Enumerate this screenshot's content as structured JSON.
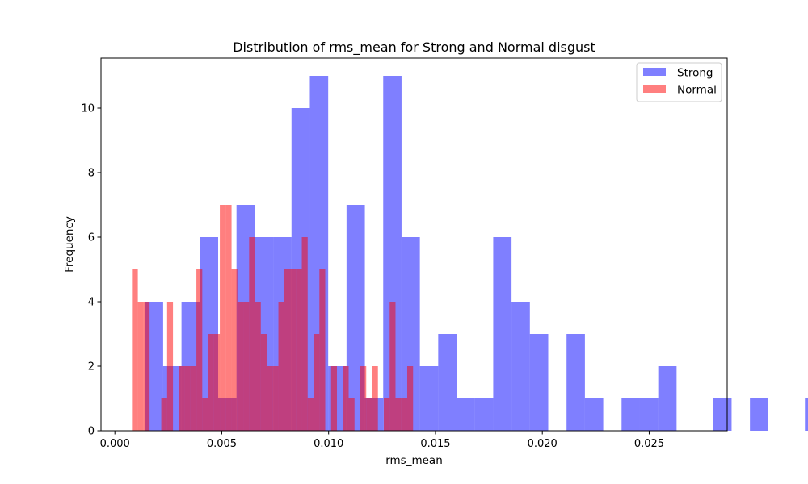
{
  "chart_data": {
    "type": "histogram",
    "title": "Distribution of rms_mean for Strong and Normal disgust",
    "xlabel": "rms_mean",
    "ylabel": "Frequency",
    "xlim": [
      -0.00065,
      0.02865
    ],
    "ylim": [
      0,
      11.55
    ],
    "xticks": [
      0.0,
      0.005,
      0.01,
      0.015,
      0.02,
      0.025
    ],
    "xtick_labels": [
      "0.000",
      "0.005",
      "0.010",
      "0.015",
      "0.020",
      "0.025"
    ],
    "yticks": [
      0,
      2,
      4,
      6,
      8,
      10
    ],
    "ytick_labels": [
      "0",
      "2",
      "4",
      "6",
      "8",
      "10"
    ],
    "legend_position": "top-right",
    "series": [
      {
        "name": "Strong",
        "color": "#0000ff",
        "alpha": 0.5,
        "bin_start": 0.0014,
        "bin_width": 0.000858,
        "counts": [
          4,
          2,
          4,
          6,
          1,
          7,
          6,
          6,
          10,
          11,
          2,
          7,
          1,
          11,
          6,
          2,
          3,
          1,
          1,
          6,
          4,
          3,
          0,
          3,
          1,
          0,
          1,
          1,
          2,
          0,
          0,
          1,
          0,
          1,
          0,
          0,
          1
        ]
      },
      {
        "name": "Normal",
        "color": "#ff0000",
        "alpha": 0.5,
        "bin_start": 0.0008,
        "bin_width": 0.000274,
        "counts": [
          5,
          4,
          4,
          0,
          0,
          1,
          4,
          0,
          2,
          2,
          2,
          5,
          1,
          3,
          3,
          7,
          7,
          5,
          4,
          4,
          6,
          4,
          3,
          2,
          2,
          4,
          5,
          5,
          5,
          6,
          1,
          3,
          5,
          0,
          2,
          0,
          2,
          1,
          0,
          2,
          1,
          2,
          0,
          1,
          4,
          1,
          1,
          2,
          0
        ]
      }
    ]
  }
}
